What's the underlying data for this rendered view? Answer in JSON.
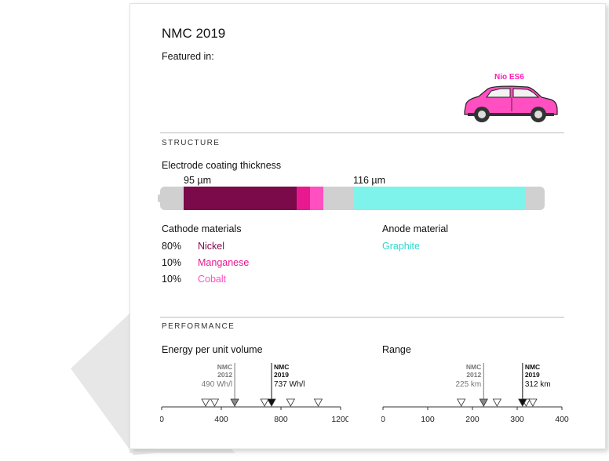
{
  "title": "NMC 2019",
  "featured_label": "Featured in:",
  "car": {
    "name": "Nio ES6",
    "icon": "suv-car-icon"
  },
  "colors": {
    "nickel": "#7a0a4a",
    "manganese": "#e8198f",
    "cobalt": "#ff4fc0",
    "graphite": "#7df3ec",
    "track": "#d0d0d0"
  },
  "structure": {
    "heading": "STRUCTURE",
    "coating_label": "Electrode coating thickness",
    "cathode_thickness": "95 µm",
    "anode_thickness": "116 µm",
    "cathode_heading": "Cathode materials",
    "anode_heading": "Anode material",
    "cathode_materials": [
      {
        "pct": "80%",
        "name": "Nickel"
      },
      {
        "pct": "10%",
        "name": "Manganese"
      },
      {
        "pct": "10%",
        "name": "Cobalt"
      }
    ],
    "anode_material": "Graphite"
  },
  "performance": {
    "heading": "PERFORMANCE",
    "energy_label": "Energy per unit volume",
    "range_label": "Range"
  },
  "chart_data": [
    {
      "type": "scatter",
      "title": "Energy per unit volume",
      "xlim": [
        0,
        1200
      ],
      "ticks": [
        "0",
        "400",
        "800",
        "1200"
      ],
      "other_points": [
        295,
        355,
        690,
        865,
        1050
      ],
      "highlights": [
        {
          "name_line1": "NMC",
          "name_line2": "2012",
          "value": 490,
          "value_label": "490 Wh/l",
          "style": "previous"
        },
        {
          "name_line1": "NMC",
          "name_line2": "2019",
          "value": 737,
          "value_label": "737 Wh/l",
          "style": "current"
        }
      ]
    },
    {
      "type": "scatter",
      "title": "Range",
      "xlim": [
        0,
        400
      ],
      "ticks": [
        "0",
        "100",
        "200",
        "300",
        "400"
      ],
      "other_points": [
        175,
        255,
        320,
        335
      ],
      "highlights": [
        {
          "name_line1": "NMC",
          "name_line2": "2012",
          "value": 225,
          "value_label": "225 km",
          "style": "previous"
        },
        {
          "name_line1": "NMC",
          "name_line2": "2019",
          "value": 312,
          "value_label": "312 km",
          "style": "current"
        }
      ]
    }
  ]
}
